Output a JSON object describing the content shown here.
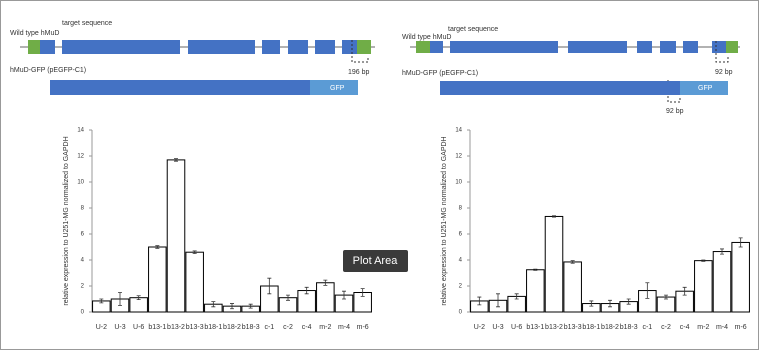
{
  "diagrams": [
    {
      "wild_type": "Wild type hMuD",
      "target": "target sequence",
      "bp": "196 bp",
      "construct": "hMuD-GFP (pEGFP-C1)",
      "gfp": "GFP"
    },
    {
      "wild_type": "Wild type hMuD",
      "target": "target sequence",
      "bp": "92 bp",
      "construct": "hMuD-GFP (pEGFP-C1)",
      "gfp": "GFP",
      "bp2": "92 bp"
    }
  ],
  "tooltip": "Plot Area",
  "chart_data": [
    {
      "type": "bar",
      "ylabel": "relative expression to U251-MG normalized to GAPDH",
      "categories": [
        "U-2",
        "U-3",
        "U-6",
        "b13-1",
        "b13-2",
        "b13-3",
        "b18-1",
        "b18-2",
        "b18-3",
        "c-1",
        "c-2",
        "c-4",
        "m-2",
        "m-4",
        "m-6"
      ],
      "values": [
        0.85,
        1.0,
        1.1,
        5.0,
        11.7,
        4.6,
        0.6,
        0.45,
        0.45,
        2.0,
        1.1,
        1.65,
        2.25,
        1.3,
        1.5
      ],
      "errors": [
        0.15,
        0.5,
        0.15,
        0.1,
        0.1,
        0.1,
        0.2,
        0.2,
        0.15,
        0.6,
        0.2,
        0.25,
        0.2,
        0.3,
        0.3
      ],
      "color": "#ffffff",
      "ylim": [
        0,
        14
      ],
      "yticks": [
        0,
        2,
        4,
        6,
        8,
        10,
        12,
        14
      ]
    },
    {
      "type": "bar",
      "ylabel": "relative expression to U251-MG normalized to GAPDH",
      "categories": [
        "U-2",
        "U-3",
        "U-6",
        "b13-1",
        "b13-2",
        "b13-3",
        "b18-1",
        "b18-2",
        "b18-3",
        "c-1",
        "c-2",
        "c-4",
        "m-2",
        "m-4",
        "m-6"
      ],
      "values": [
        0.85,
        0.9,
        1.2,
        3.25,
        7.35,
        3.85,
        0.65,
        0.65,
        0.8,
        1.65,
        1.15,
        1.6,
        3.95,
        4.65,
        5.35
      ],
      "errors": [
        0.3,
        0.5,
        0.2,
        0.05,
        0.05,
        0.1,
        0.2,
        0.25,
        0.2,
        0.6,
        0.15,
        0.3,
        0.05,
        0.2,
        0.35
      ],
      "color": "#ffffff",
      "ylim": [
        0,
        14
      ],
      "yticks": [
        0,
        2,
        4,
        6,
        8,
        10,
        12,
        14
      ]
    }
  ]
}
